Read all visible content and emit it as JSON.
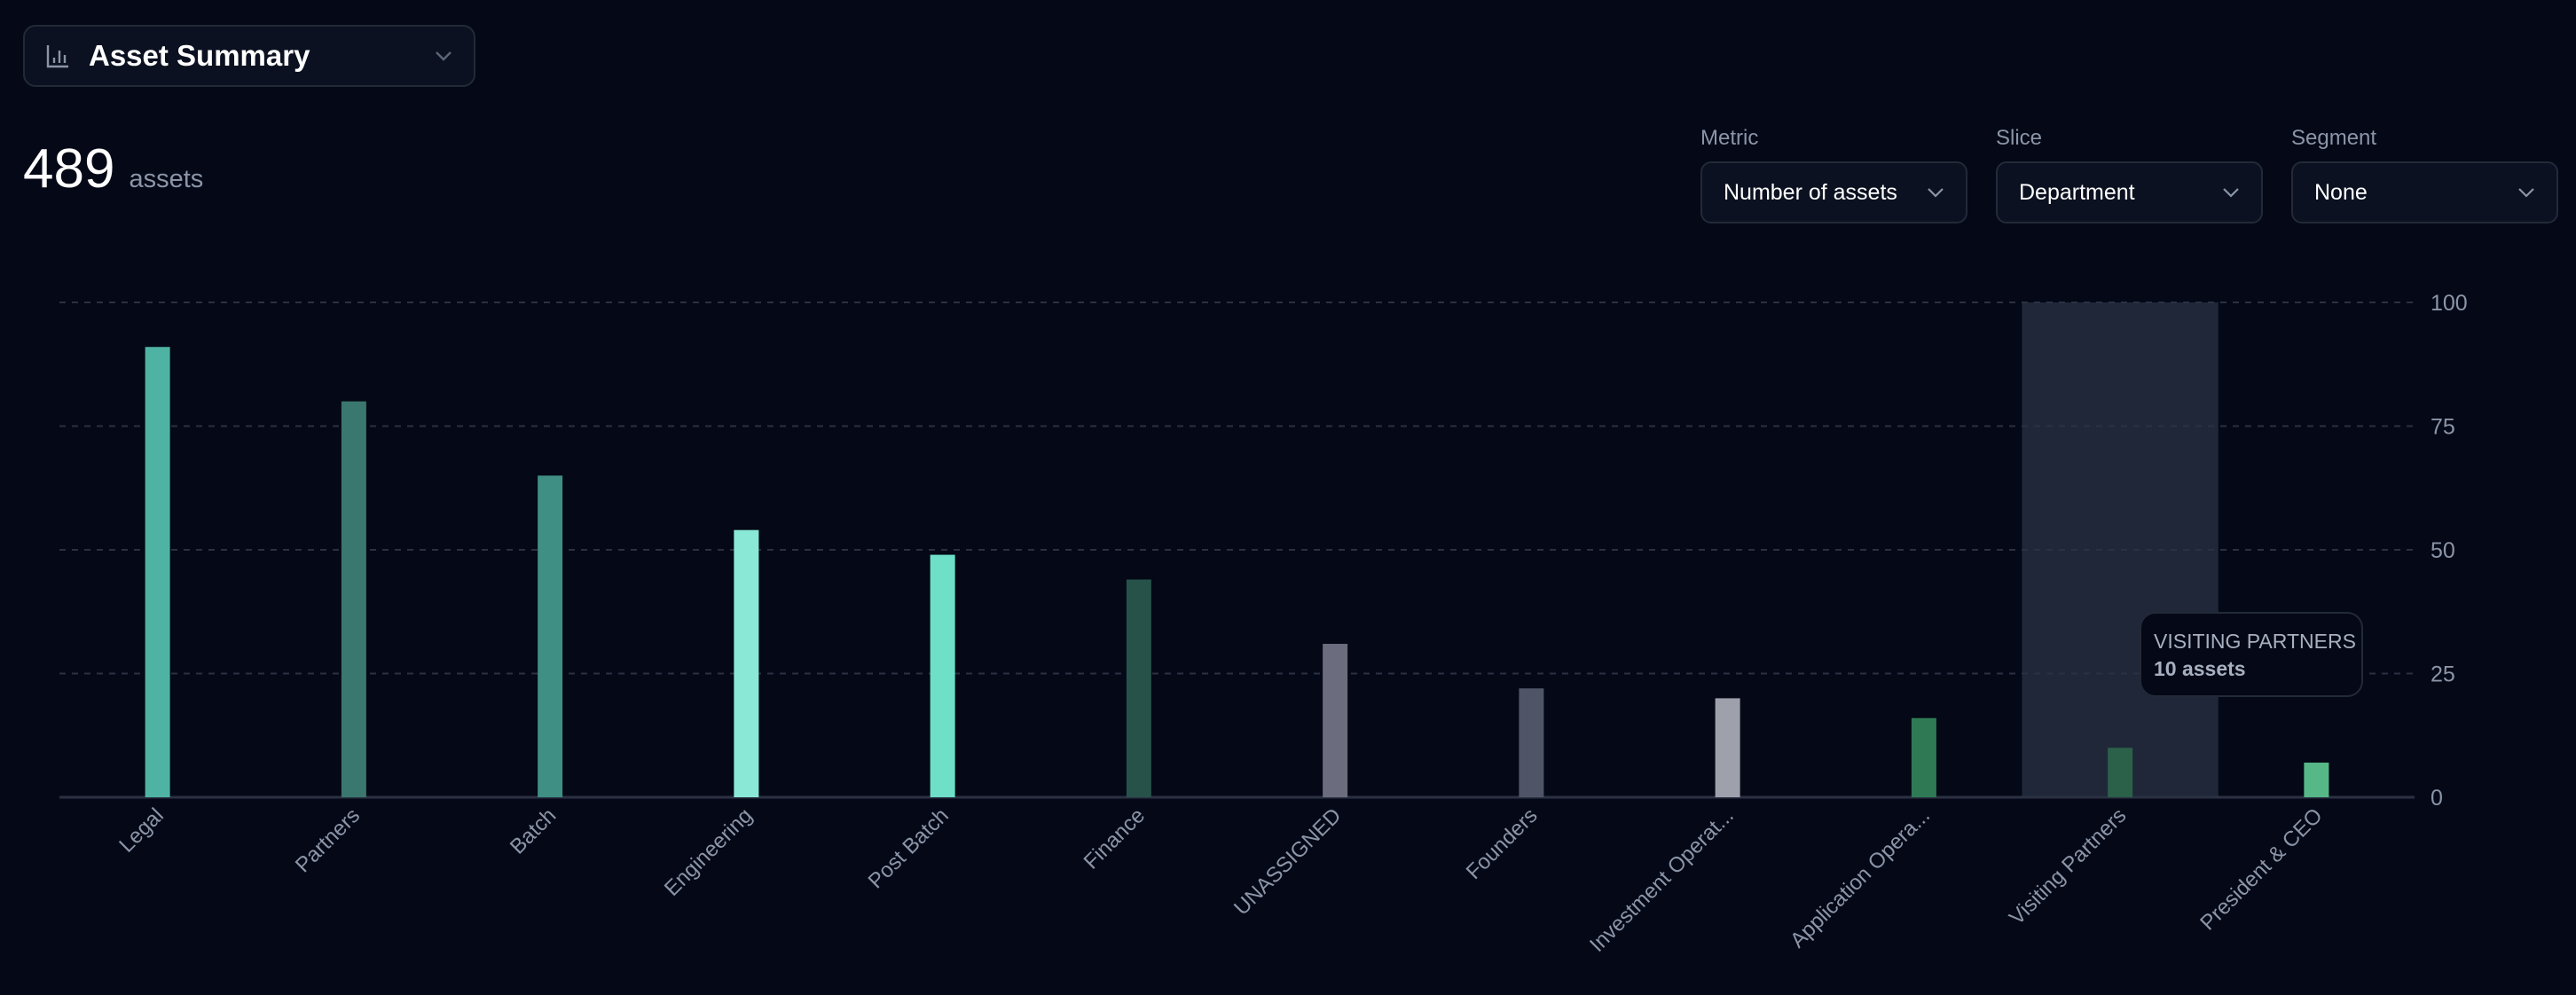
{
  "header": {
    "title": "Asset Summary",
    "icon": "bar-chart-icon"
  },
  "summary": {
    "total": "489",
    "unit": "assets"
  },
  "controls": [
    {
      "label": "Metric",
      "value": "Number of assets"
    },
    {
      "label": "Slice",
      "value": "Department"
    },
    {
      "label": "Segment",
      "value": "None"
    }
  ],
  "tooltip": {
    "title": "VISITING PARTNERS",
    "value": "10 assets"
  },
  "chart_data": {
    "type": "bar",
    "title": "",
    "xlabel": "",
    "ylabel": "",
    "categories": [
      "Legal",
      "Partners",
      "Batch",
      "Engineering",
      "Post Batch",
      "Finance",
      "UNASSIGNED",
      "Founders",
      "Investment Operat...",
      "Application Opera...",
      "Visiting Partners",
      "President & CEO"
    ],
    "values": [
      91,
      80,
      65,
      54,
      49,
      44,
      31,
      22,
      20,
      16,
      10,
      7
    ],
    "colors": [
      "#4fb3a3",
      "#3a776e",
      "#3f8f84",
      "#8ae9d6",
      "#6ee0c8",
      "#27524a",
      "#6b6d7f",
      "#4f5566",
      "#9ea1ac",
      "#2f7a55",
      "#2b6049",
      "#55b886"
    ],
    "ylim": [
      0,
      100
    ],
    "yticks": [
      "0",
      "25",
      "50",
      "75",
      "100"
    ],
    "grid": true,
    "highlighted": "Visiting Partners"
  }
}
